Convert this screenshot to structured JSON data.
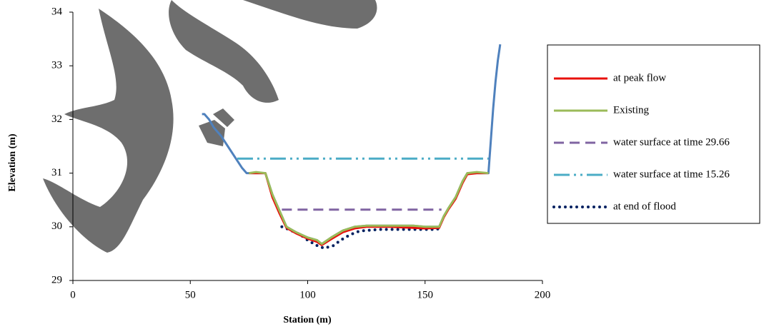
{
  "chart_data": {
    "type": "line",
    "x_label": "Station (m)",
    "y_label": "Elevation (m)",
    "xlim": [
      0,
      200
    ],
    "xticks": [
      0,
      50,
      100,
      150,
      200
    ],
    "ylim": [
      29,
      34
    ],
    "yticks": [
      29,
      30,
      31,
      32,
      33,
      34
    ],
    "legend": "right",
    "series": [
      {
        "color": "#4f81bd",
        "dash": "solid",
        "x": [
          55,
          56,
          58,
          60,
          63,
          66,
          69,
          72,
          74,
          78,
          82,
          85,
          88,
          91,
          95,
          100,
          104,
          106,
          110,
          115,
          120,
          125,
          135,
          145,
          150,
          156,
          158,
          160,
          163,
          166,
          168,
          172,
          177,
          178,
          179,
          180,
          181,
          182
        ],
        "values": [
          32.1,
          32.1,
          32.0,
          31.85,
          31.7,
          31.5,
          31.3,
          31.1,
          31.0,
          31.0,
          31.0,
          30.6,
          30.3,
          30.0,
          29.9,
          29.8,
          29.75,
          29.68,
          29.8,
          29.93,
          30.0,
          30.02,
          30.02,
          30.02,
          30.0,
          30.0,
          30.2,
          30.35,
          30.55,
          30.85,
          31.0,
          31.0,
          31.0,
          31.6,
          32.2,
          32.7,
          33.1,
          33.4
        ]
      },
      {
        "name": "water surface at time 15.26",
        "color": "#4bacc6",
        "dash": "dashdotdot",
        "x": [
          70,
          177
        ],
        "values": [
          31.27,
          31.27
        ]
      },
      {
        "name": "water surface at time 29.66",
        "color": "#8064a2",
        "dash": "dashed",
        "x": [
          89,
          157
        ],
        "values": [
          30.32,
          30.32
        ]
      },
      {
        "name": "at end of flood",
        "color": "#002060",
        "dash": "dotted",
        "x": [
          89,
          92,
          97,
          100,
          104,
          107,
          111,
          114,
          118,
          122,
          130,
          140,
          150,
          155,
          157
        ],
        "values": [
          30.0,
          29.95,
          29.85,
          29.75,
          29.65,
          29.6,
          29.65,
          29.75,
          29.85,
          29.92,
          29.95,
          29.95,
          29.95,
          29.95,
          30.0
        ]
      },
      {
        "name": "at peak flow",
        "color": "#e8100c",
        "dash": "solid",
        "x": [
          75,
          78,
          82,
          85,
          88,
          91,
          95,
          100,
          104,
          106,
          110,
          115,
          120,
          125,
          135,
          145,
          150,
          156,
          158,
          160,
          163,
          166,
          168,
          172,
          177
        ],
        "values": [
          31.0,
          31.0,
          31.0,
          30.55,
          30.25,
          29.98,
          29.88,
          29.78,
          29.72,
          29.66,
          29.77,
          29.9,
          29.97,
          30.0,
          30.0,
          29.98,
          29.97,
          29.98,
          30.18,
          30.33,
          30.52,
          30.82,
          30.98,
          31.0,
          31.0
        ]
      },
      {
        "name": "Existing",
        "color": "#9bbb59",
        "dash": "solid",
        "x": [
          75,
          78,
          82,
          85,
          88,
          91,
          95,
          100,
          104,
          106,
          110,
          115,
          120,
          125,
          135,
          145,
          150,
          156,
          158,
          160,
          163,
          166,
          168,
          172,
          177
        ],
        "values": [
          31.0,
          31.02,
          31.0,
          30.6,
          30.3,
          30.0,
          29.9,
          29.8,
          29.75,
          29.68,
          29.8,
          29.93,
          30.0,
          30.02,
          30.02,
          30.02,
          30.0,
          30.0,
          30.2,
          30.35,
          30.55,
          30.85,
          31.0,
          31.02,
          31.0
        ]
      }
    ]
  }
}
